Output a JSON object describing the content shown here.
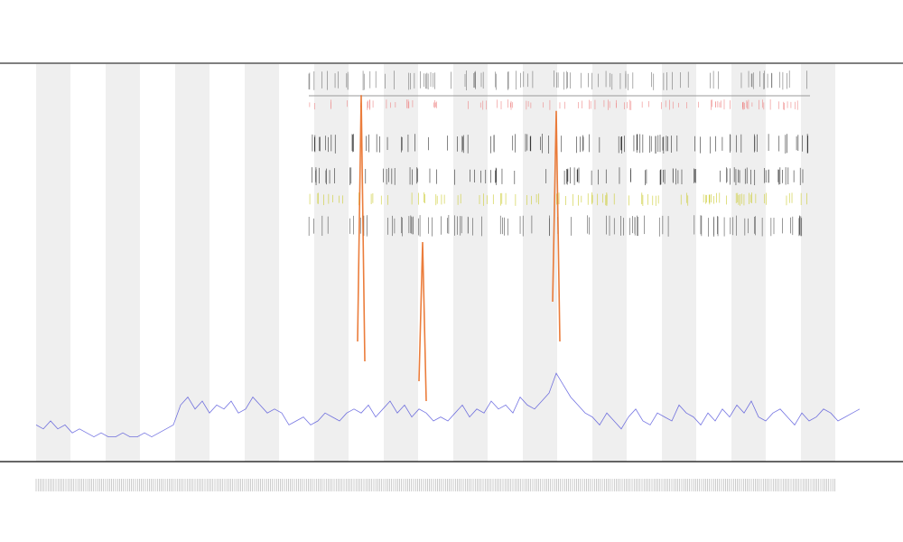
{
  "chart_data": {
    "type": "line",
    "series": [
      {
        "color": "#3b3bd6",
        "values": [
          9,
          8,
          10,
          8,
          9,
          7,
          8,
          7,
          6,
          7,
          6,
          6,
          7,
          6,
          6,
          7,
          6,
          7,
          8,
          9,
          14,
          16,
          13,
          15,
          12,
          14,
          13,
          15,
          12,
          13,
          16,
          14,
          12,
          13,
          12,
          9,
          10,
          11,
          9,
          10,
          12,
          11,
          10,
          12,
          13,
          12,
          14,
          11,
          13,
          15,
          12,
          14,
          11,
          13,
          12,
          10,
          11,
          10,
          12,
          14,
          11,
          13,
          12,
          15,
          13,
          14,
          12,
          16,
          14,
          13,
          15,
          17,
          22,
          19,
          16,
          14,
          12,
          11,
          9,
          12,
          10,
          8,
          11,
          13,
          10,
          9,
          12,
          11,
          10,
          14,
          12,
          11,
          9,
          12,
          10,
          13,
          11,
          14,
          12,
          15,
          11,
          10,
          12,
          13,
          11,
          9,
          12,
          10,
          11,
          13,
          12,
          10,
          11,
          12,
          13
        ]
      },
      {
        "color": "#e8661a",
        "x": [
          44.5,
          45,
          45.5
        ],
        "values": [
          30,
          92,
          25
        ]
      },
      {
        "color": "#e8661a",
        "x": [
          53,
          53.5,
          54
        ],
        "values": [
          20,
          55,
          15
        ]
      },
      {
        "color": "#e8661a",
        "x": [
          71.5,
          72,
          72.5
        ],
        "values": [
          40,
          88,
          30
        ]
      }
    ],
    "xlim": [
      0,
      114
    ],
    "ylim": [
      0,
      100
    ]
  }
}
